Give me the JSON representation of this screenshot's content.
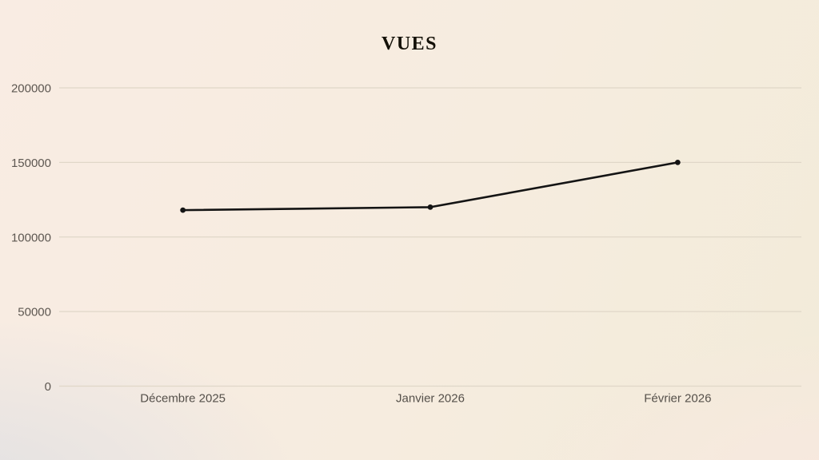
{
  "chart_data": {
    "type": "line",
    "title": "VUES",
    "categories": [
      "Décembre 2025",
      "Janvier 2026",
      "Février 2026"
    ],
    "series": [
      {
        "name": "Vues",
        "values": [
          118000,
          120000,
          150000
        ]
      }
    ],
    "xlabel": "",
    "ylabel": "",
    "ylim": [
      0,
      200000
    ],
    "yticks": [
      0,
      50000,
      100000,
      150000,
      200000
    ],
    "grid": true,
    "legend": "none",
    "marker": "dot"
  },
  "theme": {
    "line_color": "#141414",
    "marker_color": "#141414",
    "grid_color": "#e0d7c8",
    "y_label_color": "#5d5751",
    "x_label_color": "#55504a",
    "title_color": "#131007",
    "bg_top_left": "#f9ece3",
    "bg_top_right": "#f2ebd9",
    "bg_bottom_left": "#e2e1e3",
    "bg_bottom_right": "#f8e8e0"
  }
}
